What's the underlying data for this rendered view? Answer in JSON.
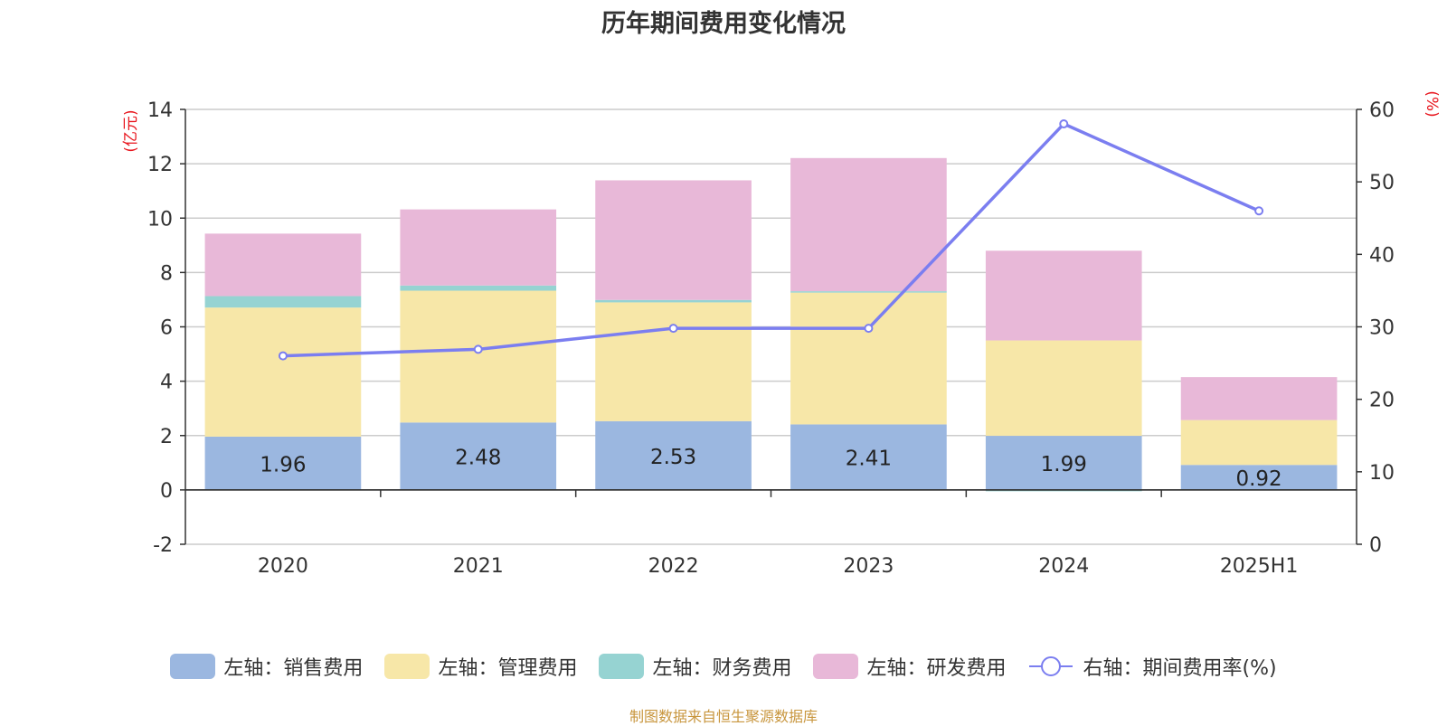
{
  "title": "历年期间费用变化情况",
  "source_note": "制图数据来自恒生聚源数据库",
  "chart_data": {
    "type": "bar",
    "stacked": true,
    "title": "历年期间费用变化情况",
    "categories": [
      "2020",
      "2021",
      "2022",
      "2023",
      "2024",
      "2025H1"
    ],
    "left_axis": {
      "unit": "(亿元)",
      "ylim": [
        -2,
        14
      ],
      "ticks": [
        -2,
        0,
        2,
        4,
        6,
        8,
        10,
        12,
        14
      ]
    },
    "right_axis": {
      "unit": "(%)",
      "ylim": [
        0,
        60
      ],
      "ticks": [
        0,
        10,
        20,
        30,
        40,
        50,
        60
      ]
    },
    "grid": true,
    "legend_position": "bottom",
    "series": [
      {
        "name": "左轴：销售费用",
        "axis": "left",
        "kind": "bar",
        "color": "#9bb7e0",
        "values": [
          1.96,
          2.48,
          2.53,
          2.41,
          1.99,
          0.92
        ],
        "labels": [
          "1.96",
          "2.48",
          "2.53",
          "2.41",
          "1.99",
          "0.92"
        ]
      },
      {
        "name": "左轴：管理费用",
        "axis": "left",
        "kind": "bar",
        "color": "#f7e7a8",
        "values": [
          4.75,
          4.85,
          4.37,
          4.85,
          3.51,
          1.65
        ]
      },
      {
        "name": "左轴：财务费用",
        "axis": "left",
        "kind": "bar",
        "color": "#96d3d2",
        "values": [
          0.42,
          0.19,
          0.09,
          0.05,
          -0.05,
          0.0
        ]
      },
      {
        "name": "左轴：研发费用",
        "axis": "left",
        "kind": "bar",
        "color": "#e8b8d8",
        "values": [
          2.3,
          2.8,
          4.4,
          4.9,
          3.3,
          1.58
        ]
      },
      {
        "name": "右轴：期间费用率(%)",
        "axis": "right",
        "kind": "line",
        "color": "#7b7ef0",
        "values": [
          26.0,
          26.9,
          29.8,
          29.8,
          58.0,
          46.0
        ]
      }
    ]
  }
}
